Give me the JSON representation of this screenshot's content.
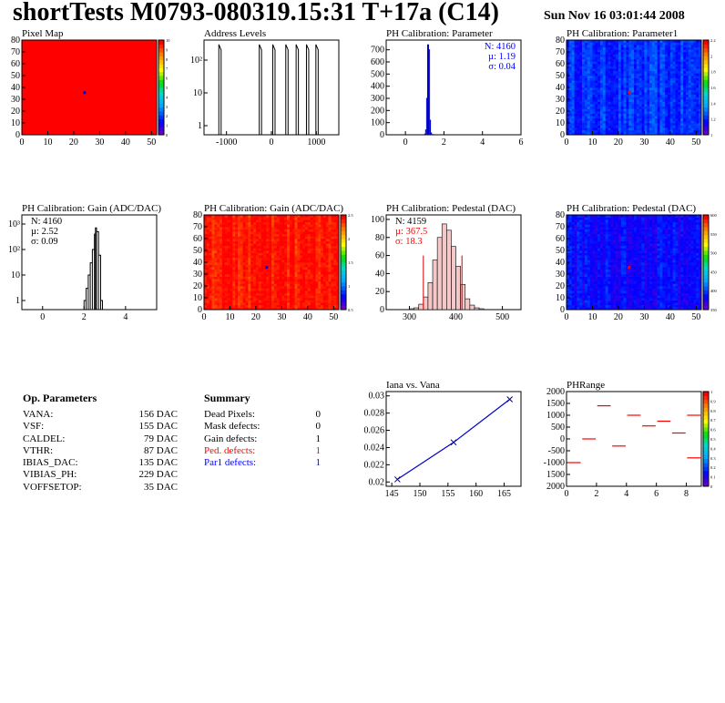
{
  "header": {
    "title": "shortTests M0793-080319.15:31 T+17a (C14)",
    "date": "Sun Nov 16 03:01:44 2008"
  },
  "op_parameters": {
    "title": "Op. Parameters",
    "rows": [
      {
        "label": "VANA:",
        "value": "156 DAC"
      },
      {
        "label": "VSF:",
        "value": "155 DAC"
      },
      {
        "label": "CALDEL:",
        "value": "79 DAC"
      },
      {
        "label": "VTHR:",
        "value": "87 DAC"
      },
      {
        "label": "IBIAS_DAC:",
        "value": "135 DAC"
      },
      {
        "label": "VIBIAS_PH:",
        "value": "229 DAC"
      },
      {
        "label": "VOFFSETOP:",
        "value": "35 DAC"
      }
    ]
  },
  "summary": {
    "title": "Summary",
    "rows": [
      {
        "label": "Dead Pixels:",
        "value": "0",
        "color": "#000000"
      },
      {
        "label": "Mask defects:",
        "value": "0",
        "color": "#000000"
      },
      {
        "label": "Gain defects:",
        "value": "1",
        "color": "#000000"
      },
      {
        "label": "Ped. defects:",
        "value": "1",
        "color": "#ff0000"
      },
      {
        "label": "Par1 defects:",
        "value": "1",
        "color": "#0000ff"
      }
    ]
  },
  "chart_data": [
    {
      "id": "pixel-map",
      "type": "heatmap",
      "title": "Pixel Map",
      "xlim": [
        0,
        52
      ],
      "ylim": [
        0,
        80
      ],
      "xticks": [
        "0",
        "10",
        "20",
        "30",
        "40",
        "50"
      ],
      "yticks": [
        "0",
        "10",
        "20",
        "30",
        "40",
        "50",
        "60",
        "70",
        "80"
      ],
      "zlim": [
        0,
        10
      ],
      "zticks": [
        "0",
        "1",
        "2",
        "3",
        "4",
        "5",
        "6",
        "7",
        "8",
        "9",
        "10"
      ],
      "fill_value": 10,
      "fill_color": "#ff0000",
      "markers": [
        {
          "x": 24,
          "y": 36,
          "color": "#0000cc"
        }
      ]
    },
    {
      "id": "address-levels",
      "type": "line",
      "title": "Address Levels",
      "xlim": [
        -1500,
        1500
      ],
      "yscale": "log",
      "xticks": [
        "-1000",
        "0",
        "1000"
      ],
      "yticks": [
        "1",
        "10",
        "10²"
      ],
      "peaks_x": [
        -1150,
        -250,
        50,
        340,
        570,
        800,
        1010
      ],
      "peak_y": 300
    },
    {
      "id": "ph-calibration-parameter",
      "type": "line",
      "title": "PH Calibration: Parameter",
      "xlim": [
        -1,
        6
      ],
      "ylim": [
        0,
        780
      ],
      "xticks": [
        "0",
        "2",
        "4",
        "6"
      ],
      "yticks": [
        "0",
        "100",
        "200",
        "300",
        "400",
        "500",
        "600",
        "700"
      ],
      "x": [
        1.0,
        1.05,
        1.1,
        1.15,
        1.2,
        1.25,
        1.3,
        1.35
      ],
      "values": [
        5,
        40,
        300,
        740,
        700,
        120,
        15,
        2
      ],
      "stats": {
        "entries": "N: 4160",
        "mean": "µ: 1.19",
        "sigma": "σ: 0.04"
      },
      "line_color": "#0000cc",
      "stats_color": "#0000ff"
    },
    {
      "id": "ph-calibration-parameter1",
      "type": "heatmap",
      "title": "PH Calibration: Parameter1",
      "xlim": [
        0,
        52
      ],
      "ylim": [
        0,
        80
      ],
      "xticks": [
        "0",
        "10",
        "20",
        "30",
        "40",
        "50"
      ],
      "yticks": [
        "0",
        "10",
        "20",
        "30",
        "40",
        "50",
        "60",
        "70",
        "80"
      ],
      "zlim": [
        1.0,
        2.2
      ],
      "zticks": [
        "1",
        "1.2",
        "1.4",
        "1.6",
        "1.8",
        "2",
        "2.2"
      ],
      "typical_range": [
        1.1,
        1.3
      ],
      "markers": [
        {
          "x": 24,
          "y": 36,
          "color": "#ff0000"
        }
      ]
    },
    {
      "id": "gain-histogram",
      "type": "line",
      "title": "PH Calibration: Gain (ADC/DAC)",
      "xlim": [
        -1,
        5.5
      ],
      "yscale": "log",
      "xticks": [
        "0",
        "2",
        "4"
      ],
      "yticks": [
        "1",
        "10",
        "10²",
        "10³"
      ],
      "x": [
        2.0,
        2.1,
        2.2,
        2.3,
        2.4,
        2.5,
        2.55,
        2.6,
        2.7,
        2.8
      ],
      "values": [
        1,
        3,
        10,
        30,
        100,
        400,
        700,
        500,
        60,
        1
      ],
      "stats": {
        "entries": "N: 4160",
        "mean": "µ: 2.52",
        "sigma": "σ: 0.09"
      },
      "line_color": "#000000",
      "stats_color": "#000000"
    },
    {
      "id": "gain-map",
      "type": "heatmap",
      "title": "PH Calibration: Gain (ADC/DAC)",
      "xlim": [
        0,
        52
      ],
      "ylim": [
        0,
        80
      ],
      "xticks": [
        "0",
        "10",
        "20",
        "30",
        "40",
        "50"
      ],
      "yticks": [
        "0",
        "10",
        "20",
        "30",
        "40",
        "50",
        "60",
        "70",
        "80"
      ],
      "zlim": [
        0.5,
        2.5
      ],
      "zticks": [
        "0.5",
        "1",
        "1.5",
        "2",
        "2.5"
      ],
      "typical_range": [
        2.3,
        2.6
      ],
      "markers": [
        {
          "x": 24,
          "y": 36,
          "color": "#0000cc"
        }
      ]
    },
    {
      "id": "pedestal-histogram",
      "type": "bar",
      "title": "PH Calibration: Pedestal (DAC)",
      "xlim": [
        250,
        540
      ],
      "ylim": [
        0,
        105
      ],
      "xticks": [
        "300",
        "400",
        "500"
      ],
      "yticks": [
        "0",
        "20",
        "40",
        "60",
        "80",
        "100"
      ],
      "x": [
        300,
        310,
        320,
        330,
        340,
        350,
        360,
        370,
        380,
        390,
        400,
        410,
        420,
        430,
        440,
        450
      ],
      "values": [
        1,
        2,
        6,
        14,
        30,
        55,
        80,
        95,
        88,
        70,
        48,
        28,
        12,
        5,
        2,
        1
      ],
      "cut_lines": [
        330,
        413
      ],
      "stats": {
        "entries": "N: 4159",
        "mean": "µ: 367.5",
        "sigma": "σ: 18.3"
      },
      "stats_color": "#ff0000"
    },
    {
      "id": "pedestal-map",
      "type": "heatmap",
      "title": "PH Calibration: Pedestal (DAC)",
      "xlim": [
        0,
        52
      ],
      "ylim": [
        0,
        80
      ],
      "xticks": [
        "0",
        "10",
        "20",
        "30",
        "40",
        "50"
      ],
      "yticks": [
        "0",
        "10",
        "20",
        "30",
        "40",
        "50",
        "60",
        "70",
        "80"
      ],
      "zlim": [
        350,
        600
      ],
      "zticks": [
        "350",
        "400",
        "450",
        "500",
        "550",
        "600"
      ],
      "typical_range": [
        360,
        400
      ],
      "markers": [
        {
          "x": 24,
          "y": 36,
          "color": "#ff0000"
        }
      ]
    },
    {
      "id": "iana-vs-vana",
      "type": "scatter",
      "title": "Iana vs. Vana",
      "xlim": [
        144,
        168
      ],
      "ylim": [
        0.0195,
        0.0305
      ],
      "xticks": [
        "145",
        "150",
        "155",
        "160",
        "165"
      ],
      "yticks": [
        "0.02",
        "0.022",
        "0.024",
        "0.026",
        "0.028",
        "0.03"
      ],
      "x": [
        146,
        156,
        166
      ],
      "values": [
        0.0203,
        0.0246,
        0.0296
      ],
      "line_color": "#0000cc"
    },
    {
      "id": "ph-range",
      "type": "scatter",
      "title": "PHRange",
      "xlim": [
        0,
        9
      ],
      "ylim": [
        -2000,
        2000
      ],
      "xticks": [
        "0",
        "2",
        "4",
        "6",
        "8"
      ],
      "yticks": [
        "2000",
        "1500",
        "1000",
        "500",
        "0",
        "-500",
        "-1000",
        "1500",
        "2000"
      ],
      "x": [
        0.5,
        1.5,
        2.5,
        3.5,
        4.5,
        5.5,
        6.5,
        7.5,
        8.5
      ],
      "values": [
        -1000,
        0,
        1400,
        -300,
        1000,
        550,
        750,
        250,
        1000
      ],
      "secondary_values": [
        null,
        null,
        null,
        null,
        null,
        null,
        null,
        null,
        -800
      ],
      "point_color": "#ff0000",
      "zlim": [
        0,
        1
      ],
      "zticks": [
        "0",
        "0.1",
        "0.2",
        "0.3",
        "0.4",
        "0.5",
        "0.6",
        "0.7",
        "0.8",
        "0.9",
        "1"
      ]
    }
  ]
}
